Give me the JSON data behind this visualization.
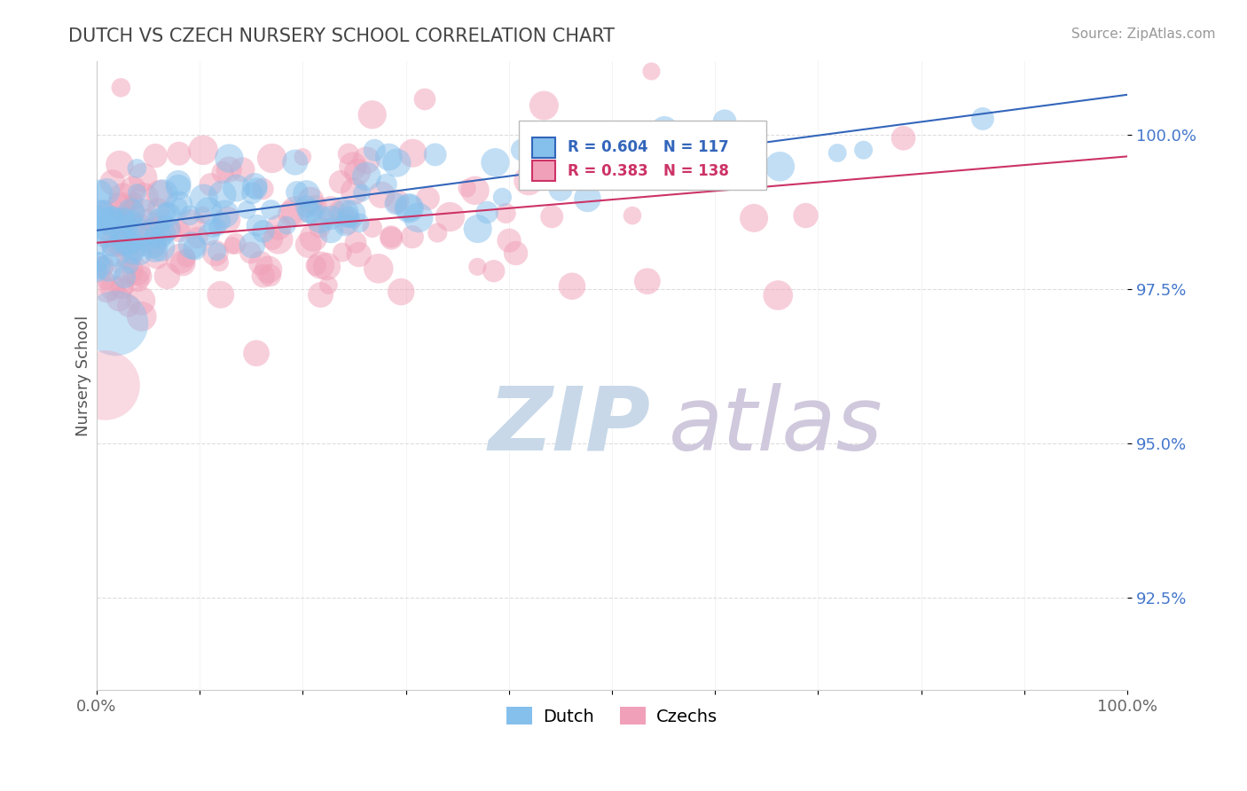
{
  "title": "DUTCH VS CZECH NURSERY SCHOOL CORRELATION CHART",
  "source": "Source: ZipAtlas.com",
  "ylabel": "Nursery School",
  "xlim": [
    0.0,
    1.0
  ],
  "ylim": [
    0.91,
    1.012
  ],
  "yticks": [
    0.925,
    0.95,
    0.975,
    1.0
  ],
  "ytick_labels": [
    "92.5%",
    "95.0%",
    "97.5%",
    "100.0%"
  ],
  "xticks": [
    0.0,
    0.1,
    0.2,
    0.3,
    0.4,
    0.5,
    0.6,
    0.7,
    0.8,
    0.9,
    1.0
  ],
  "xtick_labels": [
    "0.0%",
    "",
    "",
    "",
    "",
    "",
    "",
    "",
    "",
    "",
    "100.0%"
  ],
  "dutch_R": 0.604,
  "dutch_N": 117,
  "czech_R": 0.383,
  "czech_N": 138,
  "dutch_color": "#85BFEC",
  "czech_color": "#F0A0B8",
  "dutch_line_color": "#3366BB",
  "czech_line_color": "#CC3366",
  "title_color": "#444444",
  "watermark_zip_color": "#C8D8E8",
  "watermark_atlas_color": "#D0C8DC",
  "background_color": "#FFFFFF",
  "grid_color": "#DDDDDD",
  "right_label_color": "#4477CC",
  "dutch_seed": 10,
  "czech_seed": 77,
  "dutch_slope": 0.022,
  "dutch_intercept": 0.9845,
  "dutch_noise": 0.004,
  "czech_slope": 0.014,
  "czech_intercept": 0.9825,
  "czech_noise": 0.0075
}
